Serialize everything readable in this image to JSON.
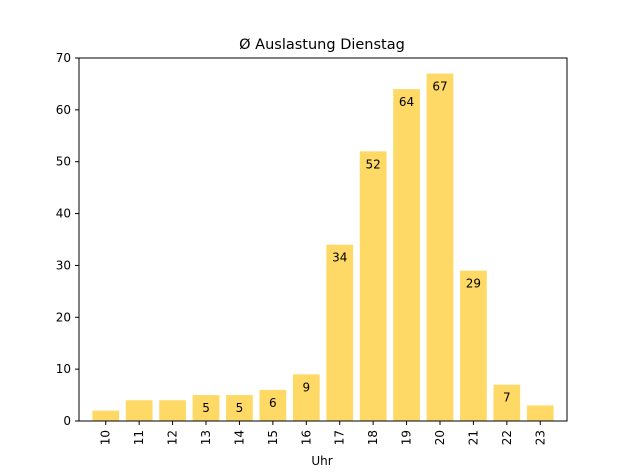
{
  "chart_data": {
    "type": "bar",
    "title": "Ø Auslastung Dienstag",
    "xlabel": "Uhr",
    "ylabel": "",
    "ylim": [
      0,
      70
    ],
    "yticks": [
      0,
      10,
      20,
      30,
      40,
      50,
      60,
      70
    ],
    "grid": false,
    "legend": "none",
    "bar_color": "#ffd966",
    "categories": [
      "10",
      "11",
      "12",
      "13",
      "14",
      "15",
      "16",
      "17",
      "18",
      "19",
      "20",
      "21",
      "22",
      "23"
    ],
    "values": [
      2,
      4,
      4,
      5,
      5,
      6,
      9,
      34,
      52,
      64,
      67,
      29,
      7,
      3
    ],
    "data_labels": [
      "",
      "",
      "",
      "5",
      "5",
      "6",
      "9",
      "34",
      "52",
      "64",
      "67",
      "29",
      "7",
      ""
    ]
  }
}
